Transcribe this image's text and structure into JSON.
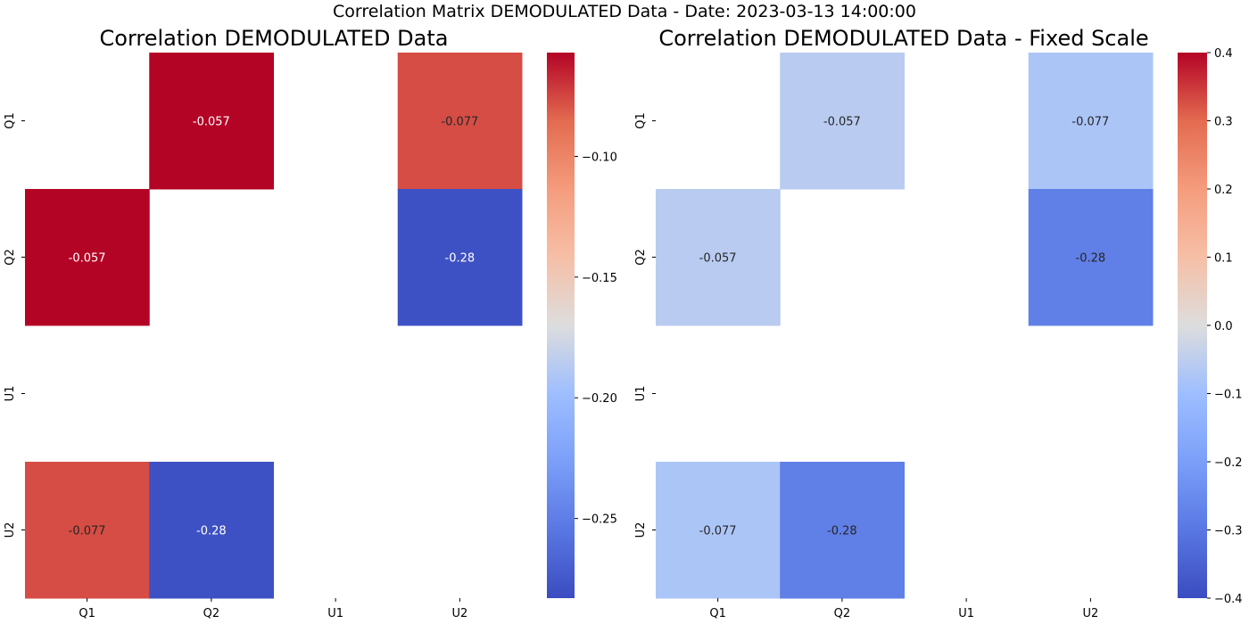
{
  "suptitle": "Correlation Matrix DEMODULATED Data - Date: 2023-03-13 14:00:00",
  "chart_data": [
    {
      "type": "heatmap",
      "title": "Correlation DEMODULATED Data",
      "x_categories": [
        "Q1",
        "Q2",
        "U1",
        "U2"
      ],
      "y_categories": [
        "Q1",
        "Q2",
        "U1",
        "U2"
      ],
      "values": [
        [
          null,
          -0.057,
          null,
          -0.077
        ],
        [
          -0.057,
          null,
          null,
          -0.28
        ],
        [
          null,
          null,
          null,
          null
        ],
        [
          -0.077,
          -0.28,
          null,
          null
        ]
      ],
      "annotations": [
        [
          null,
          "-0.057",
          null,
          "-0.077"
        ],
        [
          "-0.057",
          null,
          null,
          "-0.28"
        ],
        [
          null,
          null,
          null,
          null
        ],
        [
          "-0.077",
          "-0.28",
          null,
          null
        ]
      ],
      "colormap": "coolwarm",
      "vmin": -0.283,
      "vmax": -0.057,
      "colorbar_ticks": [
        -0.1,
        -0.15,
        -0.2,
        -0.25
      ],
      "colorbar_tick_labels": [
        "−0.10",
        "−0.15",
        "−0.20",
        "−0.25"
      ]
    },
    {
      "type": "heatmap",
      "title": "Correlation DEMODULATED Data - Fixed Scale",
      "x_categories": [
        "Q1",
        "Q2",
        "U1",
        "U2"
      ],
      "y_categories": [
        "Q1",
        "Q2",
        "U1",
        "U2"
      ],
      "values": [
        [
          null,
          -0.057,
          null,
          -0.077
        ],
        [
          -0.057,
          null,
          null,
          -0.28
        ],
        [
          null,
          null,
          null,
          null
        ],
        [
          -0.077,
          -0.28,
          null,
          null
        ]
      ],
      "annotations": [
        [
          null,
          "-0.057",
          null,
          "-0.077"
        ],
        [
          "-0.057",
          null,
          null,
          "-0.28"
        ],
        [
          null,
          null,
          null,
          null
        ],
        [
          "-0.077",
          "-0.28",
          null,
          null
        ]
      ],
      "colormap": "coolwarm",
      "vmin": -0.4,
      "vmax": 0.4,
      "colorbar_ticks": [
        0.4,
        0.3,
        0.2,
        0.1,
        0.0,
        -0.1,
        -0.2,
        -0.3,
        -0.4
      ],
      "colorbar_tick_labels": [
        "0.4",
        "0.3",
        "0.2",
        "0.1",
        "0.0",
        "−0.1",
        "−0.2",
        "−0.3",
        "−0.4"
      ]
    }
  ]
}
